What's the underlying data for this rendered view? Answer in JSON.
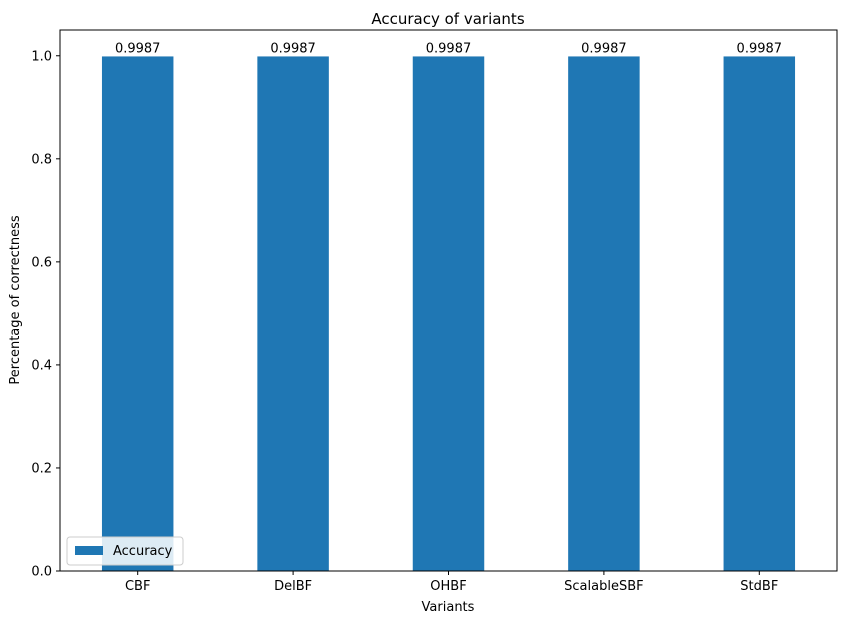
{
  "chart_data": {
    "type": "bar",
    "title": "Accuracy of variants",
    "xlabel": "Variants",
    "ylabel": "Percentage of correctness",
    "categories": [
      "CBF",
      "DelBF",
      "OHBF",
      "ScalableSBF",
      "StdBF"
    ],
    "series": [
      {
        "name": "Accuracy",
        "values": [
          0.9987,
          0.9987,
          0.9987,
          0.9987,
          0.9987
        ],
        "data_labels": [
          "0.9987",
          "0.9987",
          "0.9987",
          "0.9987",
          "0.9987"
        ],
        "color": "#1f77b4"
      }
    ],
    "yticks": [
      "0.0",
      "0.2",
      "0.4",
      "0.6",
      "0.8",
      "1.0"
    ],
    "ylim": [
      0,
      1.05
    ],
    "grid": false,
    "legend_position": "lower-left"
  }
}
